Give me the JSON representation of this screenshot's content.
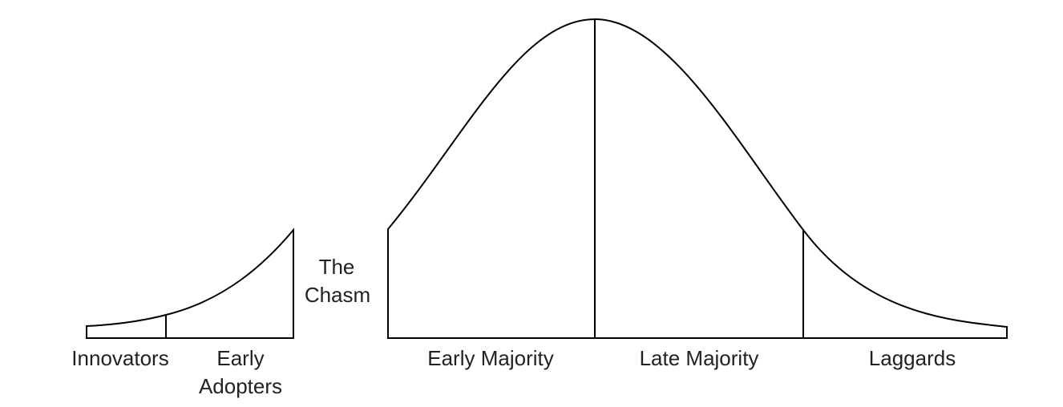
{
  "segments": [
    {
      "label_line1": "Innovators",
      "label_line2": ""
    },
    {
      "label_line1": "Early",
      "label_line2": "Adopters"
    },
    {
      "label_line1": "Early Majority",
      "label_line2": ""
    },
    {
      "label_line1": "Late Majority",
      "label_line2": ""
    },
    {
      "label_line1": "Laggards",
      "label_line2": ""
    }
  ],
  "gap": {
    "label_line1": "The",
    "label_line2": "Chasm"
  },
  "colors": {
    "stroke": "#000000",
    "text": "#222222",
    "background": "#ffffff"
  }
}
